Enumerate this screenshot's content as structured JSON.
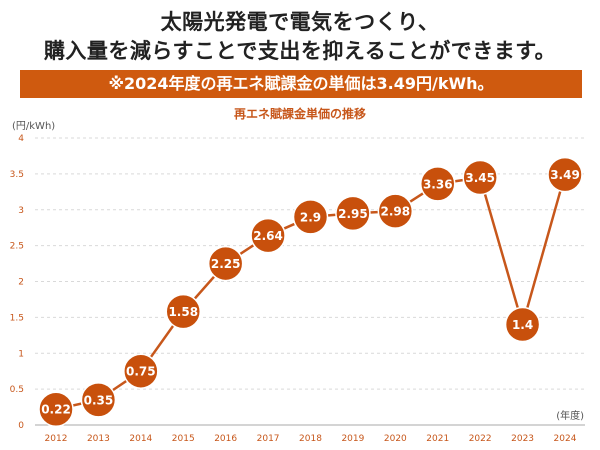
{
  "header": {
    "line1": "太陽光発電で電気をつくり、",
    "line2": "購入量を減らすことで支出を抑えることができます。",
    "banner": "※2024年度の再エネ賦課金の単価は3.49円/kWh。"
  },
  "colors": {
    "accent": "#cf5a0f",
    "line": "#c7571b",
    "marker": "#c8500c",
    "grid": "#d9d9d9"
  },
  "chart_data": {
    "type": "line",
    "title": "再エネ賦課金単価の推移",
    "ylabel": "(円/kWh)",
    "xlabel": "(年度)",
    "categories": [
      "2012",
      "2013",
      "2014",
      "2015",
      "2016",
      "2017",
      "2018",
      "2019",
      "2020",
      "2021",
      "2022",
      "2023",
      "2024"
    ],
    "values": [
      0.22,
      0.35,
      0.75,
      1.58,
      2.25,
      2.64,
      2.9,
      2.95,
      2.98,
      3.36,
      3.45,
      1.4,
      3.49
    ],
    "ylim": [
      0,
      4
    ],
    "yticks": [
      0,
      0.5,
      1,
      1.5,
      2,
      2.5,
      3,
      3.5,
      4
    ],
    "grid": true,
    "legend": "none"
  }
}
